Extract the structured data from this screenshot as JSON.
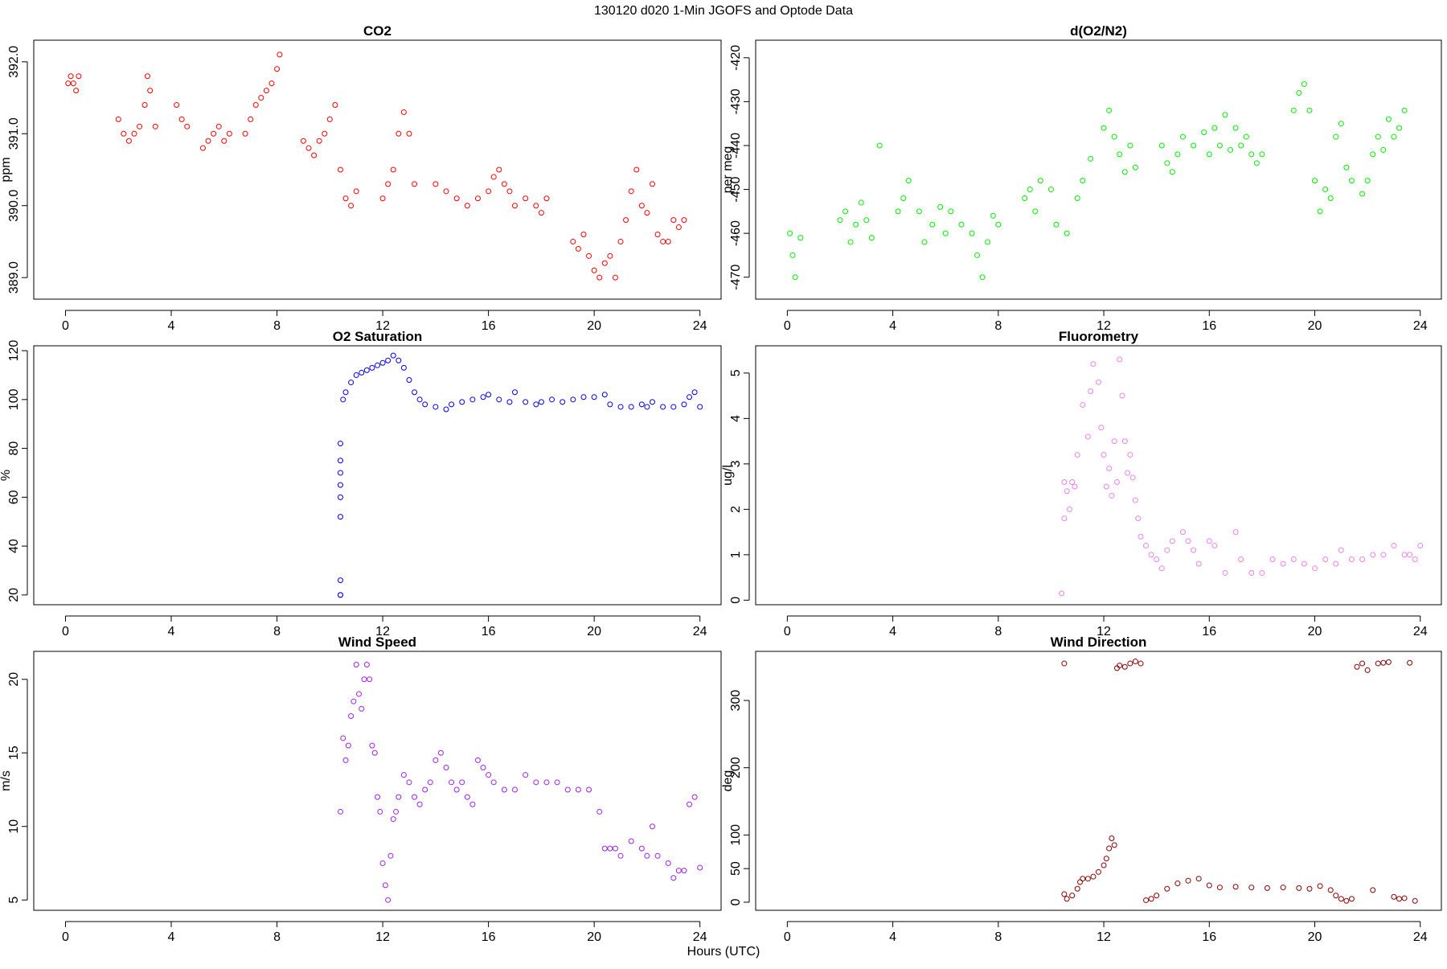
{
  "figure": {
    "title": "130120   d020   1-Min  JGOFS and Optode Data",
    "xlabel": "Hours (UTC)"
  },
  "chart_data": [
    {
      "type": "scatter",
      "title": "CO2",
      "ylabel": "ppm",
      "xlim": [
        -1.2,
        24.8
      ],
      "ylim": [
        388.7,
        392.3
      ],
      "xticks": [
        0,
        4,
        8,
        12,
        16,
        20,
        24
      ],
      "yticks": [
        389.0,
        390.0,
        391.0,
        392.0
      ],
      "ytick_labels": [
        "389.0",
        "390.0",
        "391.0",
        "392.0"
      ],
      "color": "#ff0000",
      "series": [
        {
          "x": [
            0.1,
            0.2,
            0.3,
            0.4,
            0.5,
            2.0,
            2.2,
            2.4,
            2.6,
            2.8,
            3.0,
            3.1,
            3.2,
            3.4,
            4.2,
            4.4,
            4.6,
            5.2,
            5.4,
            5.6,
            5.8,
            6.0,
            6.2,
            6.8,
            7.0,
            7.2,
            7.4,
            7.6,
            7.8,
            8.0,
            8.1,
            9.0,
            9.2,
            9.4,
            9.6,
            9.8,
            10.0,
            10.2,
            10.4,
            10.6,
            10.8,
            11.0,
            12.0,
            12.2,
            12.4,
            12.6,
            12.8,
            13.0,
            13.2,
            14.0,
            14.4,
            14.8,
            15.2,
            15.6,
            16.0,
            16.2,
            16.4,
            16.6,
            16.8,
            17.0,
            17.4,
            17.8,
            18.0,
            18.2,
            19.2,
            19.4,
            19.6,
            19.8,
            20.0,
            20.2,
            20.4,
            20.6,
            20.8,
            21.0,
            21.2,
            21.4,
            21.6,
            21.8,
            22.0,
            22.2,
            22.4,
            22.6,
            22.8,
            23.0,
            23.2,
            23.4
          ],
          "y": [
            391.7,
            391.8,
            391.7,
            391.6,
            391.8,
            391.2,
            391.0,
            390.9,
            391.0,
            391.1,
            391.4,
            391.8,
            391.6,
            391.1,
            391.4,
            391.2,
            391.1,
            390.8,
            390.9,
            391.0,
            391.1,
            390.9,
            391.0,
            391.0,
            391.2,
            391.4,
            391.5,
            391.6,
            391.7,
            391.9,
            392.1,
            390.9,
            390.8,
            390.7,
            390.9,
            391.0,
            391.2,
            391.4,
            390.5,
            390.1,
            390.0,
            390.2,
            390.1,
            390.3,
            390.5,
            391.0,
            391.3,
            391.0,
            390.3,
            390.3,
            390.2,
            390.1,
            390.0,
            390.1,
            390.2,
            390.4,
            390.5,
            390.3,
            390.2,
            390.0,
            390.1,
            390.0,
            389.9,
            390.1,
            389.5,
            389.4,
            389.6,
            389.3,
            389.1,
            389.0,
            389.2,
            389.3,
            389.0,
            389.5,
            389.8,
            390.2,
            390.5,
            390.0,
            389.9,
            390.3,
            389.6,
            389.5,
            389.5,
            389.8,
            389.7,
            389.8
          ]
        }
      ]
    },
    {
      "type": "scatter",
      "title": "d(O2/N2)",
      "ylabel": "per meg",
      "xlim": [
        -1.2,
        24.8
      ],
      "ylim": [
        -475,
        -416
      ],
      "xticks": [
        0,
        4,
        8,
        12,
        16,
        20,
        24
      ],
      "yticks": [
        -470,
        -460,
        -450,
        -440,
        -430,
        -420
      ],
      "ytick_labels": [
        "-470",
        "-460",
        "-450",
        "-440",
        "-430",
        "-420"
      ],
      "color": "#00ee00",
      "series": [
        {
          "x": [
            0.1,
            0.2,
            0.3,
            0.5,
            2.0,
            2.2,
            2.4,
            2.6,
            2.8,
            3.0,
            3.2,
            3.5,
            4.2,
            4.4,
            4.6,
            5.0,
            5.2,
            5.5,
            5.8,
            6.0,
            6.2,
            6.6,
            7.0,
            7.2,
            7.4,
            7.6,
            7.8,
            8.0,
            9.0,
            9.2,
            9.4,
            9.6,
            10.0,
            10.2,
            10.6,
            11.0,
            11.2,
            11.5,
            12.0,
            12.2,
            12.4,
            12.6,
            12.8,
            13.0,
            13.2,
            14.2,
            14.4,
            14.6,
            14.8,
            15.0,
            15.4,
            15.8,
            16.0,
            16.2,
            16.4,
            16.6,
            16.8,
            17.0,
            17.2,
            17.4,
            17.6,
            17.8,
            18.0,
            19.2,
            19.4,
            19.6,
            19.8,
            20.0,
            20.2,
            20.4,
            20.6,
            20.8,
            21.0,
            21.2,
            21.4,
            21.8,
            22.0,
            22.2,
            22.4,
            22.6,
            22.8,
            23.0,
            23.2,
            23.4
          ],
          "y": [
            -460,
            -465,
            -470,
            -461,
            -457,
            -455,
            -462,
            -458,
            -453,
            -457,
            -461,
            -440,
            -455,
            -452,
            -448,
            -455,
            -462,
            -458,
            -454,
            -460,
            -455,
            -458,
            -460,
            -465,
            -470,
            -462,
            -456,
            -458,
            -452,
            -450,
            -455,
            -448,
            -450,
            -458,
            -460,
            -452,
            -448,
            -443,
            -436,
            -432,
            -438,
            -442,
            -446,
            -440,
            -445,
            -440,
            -444,
            -446,
            -442,
            -438,
            -440,
            -437,
            -442,
            -436,
            -440,
            -433,
            -441,
            -436,
            -440,
            -438,
            -442,
            -444,
            -442,
            -432,
            -428,
            -426,
            -432,
            -448,
            -455,
            -450,
            -452,
            -438,
            -435,
            -445,
            -448,
            -451,
            -448,
            -442,
            -438,
            -441,
            -434,
            -438,
            -436,
            -432
          ]
        }
      ]
    },
    {
      "type": "scatter",
      "title": "O2 Saturation",
      "ylabel": "%",
      "xlim": [
        -1.2,
        24.8
      ],
      "ylim": [
        16,
        122
      ],
      "xticks": [
        0,
        4,
        8,
        12,
        16,
        20,
        24
      ],
      "yticks": [
        20,
        40,
        60,
        80,
        100,
        120
      ],
      "ytick_labels": [
        "20",
        "40",
        "60",
        "80",
        "100",
        "120"
      ],
      "color": "#0000ee",
      "series": [
        {
          "x": [
            10.4,
            10.4,
            10.4,
            10.4,
            10.4,
            10.4,
            10.4,
            10.4,
            10.4,
            10.5,
            10.6,
            10.8,
            11.0,
            11.2,
            11.4,
            11.6,
            11.8,
            12.0,
            12.2,
            12.4,
            12.6,
            12.8,
            13.0,
            13.2,
            13.4,
            13.6,
            14.0,
            14.4,
            14.6,
            15.0,
            15.4,
            15.8,
            16.0,
            16.4,
            16.8,
            17.0,
            17.4,
            17.8,
            18.0,
            18.4,
            18.8,
            19.2,
            19.6,
            20.0,
            20.4,
            20.6,
            21.0,
            21.4,
            21.8,
            22.0,
            22.2,
            22.6,
            23.0,
            23.4,
            23.6,
            23.8,
            24.0
          ],
          "y": [
            20,
            20,
            26,
            52,
            60,
            65,
            70,
            75,
            82,
            100,
            103,
            107,
            110,
            111,
            112,
            113,
            114,
            115,
            116,
            118,
            116,
            113,
            108,
            103,
            100,
            98,
            97,
            96,
            98,
            99,
            100,
            101,
            102,
            100,
            99,
            103,
            99,
            98,
            99,
            100,
            99,
            100,
            101,
            101,
            102,
            98,
            97,
            97,
            98,
            97,
            99,
            97,
            97,
            98,
            101,
            103,
            97
          ]
        }
      ]
    },
    {
      "type": "scatter",
      "title": "Fluorometry",
      "ylabel": "ug/l",
      "xlim": [
        -1.2,
        24.8
      ],
      "ylim": [
        -0.1,
        5.6
      ],
      "xticks": [
        0,
        4,
        8,
        12,
        16,
        20,
        24
      ],
      "yticks": [
        0,
        1,
        2,
        3,
        4,
        5
      ],
      "ytick_labels": [
        "0",
        "1",
        "2",
        "3",
        "4",
        "5"
      ],
      "color": "#ee82ee",
      "series": [
        {
          "x": [
            10.4,
            10.5,
            10.5,
            10.6,
            10.7,
            10.8,
            10.9,
            11.0,
            11.2,
            11.4,
            11.5,
            11.6,
            11.8,
            11.9,
            12.0,
            12.1,
            12.2,
            12.3,
            12.4,
            12.5,
            12.6,
            12.7,
            12.8,
            12.9,
            13.0,
            13.1,
            13.2,
            13.3,
            13.4,
            13.6,
            13.8,
            14.0,
            14.2,
            14.4,
            14.6,
            15.0,
            15.2,
            15.4,
            15.6,
            16.0,
            16.2,
            16.6,
            17.0,
            17.2,
            17.6,
            18.0,
            18.4,
            18.8,
            19.2,
            19.6,
            20.0,
            20.4,
            20.8,
            21.0,
            21.4,
            21.8,
            22.2,
            22.6,
            23.0,
            23.4,
            23.6,
            23.8,
            24.0
          ],
          "y": [
            0.15,
            1.8,
            2.6,
            2.4,
            2.0,
            2.6,
            2.5,
            3.2,
            4.3,
            3.6,
            4.6,
            5.2,
            4.8,
            3.8,
            3.2,
            2.5,
            2.9,
            2.3,
            3.5,
            2.6,
            5.3,
            4.5,
            3.5,
            2.8,
            3.2,
            2.7,
            2.2,
            1.8,
            1.4,
            1.2,
            1.0,
            0.9,
            0.7,
            1.1,
            1.3,
            1.5,
            1.3,
            1.1,
            0.8,
            1.3,
            1.2,
            0.6,
            1.5,
            0.9,
            0.6,
            0.6,
            0.9,
            0.8,
            0.9,
            0.8,
            0.7,
            0.9,
            0.8,
            1.1,
            0.9,
            0.9,
            1.0,
            1.0,
            1.2,
            1.0,
            1.0,
            0.9,
            1.2
          ]
        }
      ]
    },
    {
      "type": "scatter",
      "title": "Wind Speed",
      "ylabel": "m/s",
      "xlim": [
        -1.2,
        24.8
      ],
      "ylim": [
        4.3,
        21.9
      ],
      "xticks": [
        0,
        4,
        8,
        12,
        16,
        20,
        24
      ],
      "yticks": [
        5,
        10,
        15,
        20
      ],
      "ytick_labels": [
        "5",
        "10",
        "15",
        "20"
      ],
      "color": "#a020f0",
      "series": [
        {
          "x": [
            10.4,
            10.5,
            10.6,
            10.7,
            10.8,
            10.9,
            11.0,
            11.1,
            11.2,
            11.3,
            11.4,
            11.5,
            11.6,
            11.7,
            11.8,
            11.9,
            12.0,
            12.1,
            12.2,
            12.3,
            12.4,
            12.5,
            12.6,
            12.8,
            13.0,
            13.2,
            13.4,
            13.6,
            13.8,
            14.0,
            14.2,
            14.4,
            14.6,
            14.8,
            15.0,
            15.2,
            15.4,
            15.6,
            15.8,
            16.0,
            16.2,
            16.6,
            17.0,
            17.4,
            17.8,
            18.2,
            18.6,
            19.0,
            19.4,
            19.8,
            20.2,
            20.4,
            20.6,
            20.8,
            21.0,
            21.4,
            21.8,
            22.0,
            22.2,
            22.4,
            22.8,
            23.0,
            23.2,
            23.4,
            23.6,
            23.8,
            24.0
          ],
          "y": [
            11.0,
            16.0,
            14.5,
            15.5,
            17.5,
            18.5,
            21.0,
            19.0,
            18.0,
            20.0,
            21.0,
            20.0,
            15.5,
            15.0,
            12.0,
            11.0,
            7.5,
            6.0,
            5.0,
            8.0,
            10.5,
            11.0,
            12.0,
            13.5,
            13.0,
            12.0,
            11.5,
            12.5,
            13.0,
            14.5,
            15.0,
            14.0,
            13.0,
            12.5,
            13.0,
            12.0,
            11.5,
            14.5,
            14.0,
            13.5,
            13.0,
            12.5,
            12.5,
            13.5,
            13.0,
            13.0,
            13.0,
            12.5,
            12.5,
            12.5,
            11.0,
            8.5,
            8.5,
            8.5,
            8.0,
            9.0,
            8.5,
            8.0,
            10.0,
            8.0,
            7.5,
            6.5,
            7.0,
            7.0,
            11.5,
            12.0,
            7.2
          ]
        }
      ]
    },
    {
      "type": "scatter",
      "title": "Wind Direction",
      "ylabel": "deg",
      "xlim": [
        -1.2,
        24.8
      ],
      "ylim": [
        -12,
        373
      ],
      "xticks": [
        0,
        4,
        8,
        12,
        16,
        20,
        24
      ],
      "yticks": [
        0,
        50,
        100,
        200,
        300
      ],
      "ytick_labels": [
        "0",
        "50",
        "100",
        "200",
        "300"
      ],
      "color": "#8b0000",
      "series": [
        {
          "x": [
            10.5,
            10.5,
            10.6,
            10.8,
            11.0,
            11.1,
            11.2,
            11.4,
            11.6,
            11.8,
            12.0,
            12.1,
            12.2,
            12.3,
            12.4,
            12.5,
            12.6,
            12.8,
            13.0,
            13.2,
            13.4,
            13.6,
            13.8,
            14.0,
            14.4,
            14.8,
            15.2,
            15.6,
            16.0,
            16.4,
            17.0,
            17.6,
            18.2,
            18.8,
            19.4,
            19.8,
            20.2,
            20.6,
            20.8,
            21.0,
            21.2,
            21.4,
            21.6,
            21.8,
            22.0,
            22.2,
            22.4,
            22.6,
            22.8,
            23.0,
            23.2,
            23.4,
            23.6,
            23.8
          ],
          "y": [
            355,
            12,
            5,
            10,
            20,
            30,
            35,
            35,
            38,
            45,
            55,
            65,
            80,
            95,
            85,
            348,
            352,
            350,
            355,
            358,
            355,
            3,
            5,
            10,
            20,
            28,
            32,
            35,
            25,
            22,
            23,
            22,
            21,
            22,
            21,
            20,
            24,
            18,
            10,
            5,
            2,
            5,
            350,
            355,
            345,
            18,
            355,
            356,
            357,
            8,
            5,
            6,
            356,
            2
          ]
        }
      ]
    }
  ]
}
